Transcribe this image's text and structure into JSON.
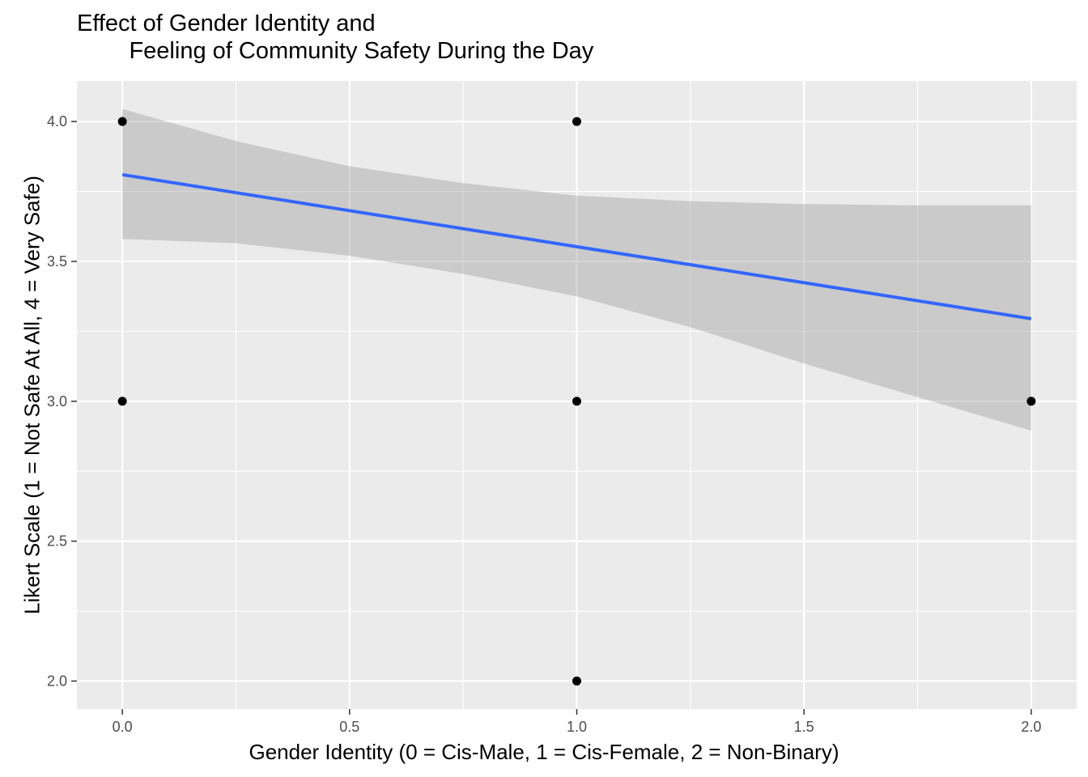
{
  "chart_data": {
    "type": "scatter",
    "title_line1": "Effect of Gender Identity and",
    "title_line2": "        Feeling of Community Safety During the Day",
    "xlabel": "Gender Identity (0 = Cis-Male, 1 = Cis-Female, 2 = Non-Binary)",
    "ylabel": "Likert Scale (1 = Not Safe At All, 4 = Very Safe)",
    "xlim": [
      -0.1,
      2.1
    ],
    "ylim": [
      1.9,
      4.145
    ],
    "x_ticks": [
      0.0,
      0.5,
      1.0,
      1.5,
      2.0
    ],
    "x_tick_labels": [
      "0.0",
      "0.5",
      "1.0",
      "1.5",
      "2.0"
    ],
    "y_ticks": [
      2.0,
      2.5,
      3.0,
      3.5,
      4.0
    ],
    "y_tick_labels": [
      "2.0",
      "2.5",
      "3.0",
      "3.5",
      "4.0"
    ],
    "grid": true,
    "points": [
      {
        "x": 0,
        "y": 4
      },
      {
        "x": 0,
        "y": 3
      },
      {
        "x": 1,
        "y": 4
      },
      {
        "x": 1,
        "y": 3
      },
      {
        "x": 1,
        "y": 2
      },
      {
        "x": 2,
        "y": 3
      }
    ],
    "fit_line": {
      "method": "lm",
      "x": [
        0,
        2
      ],
      "y": [
        3.81,
        3.295
      ],
      "color": "#3366FF"
    },
    "confidence_band": {
      "x": [
        0,
        0.25,
        0.5,
        0.75,
        1.0,
        1.25,
        1.5,
        1.75,
        2.0
      ],
      "upper": [
        4.045,
        3.93,
        3.84,
        3.78,
        3.735,
        3.715,
        3.705,
        3.7,
        3.7
      ],
      "lower": [
        3.58,
        3.565,
        3.52,
        3.455,
        3.375,
        3.265,
        3.135,
        3.015,
        2.895
      ],
      "color": "#999999"
    },
    "colors": {
      "panel_background": "#EBEBEB",
      "grid": "#FFFFFF",
      "points": "#000000"
    }
  }
}
